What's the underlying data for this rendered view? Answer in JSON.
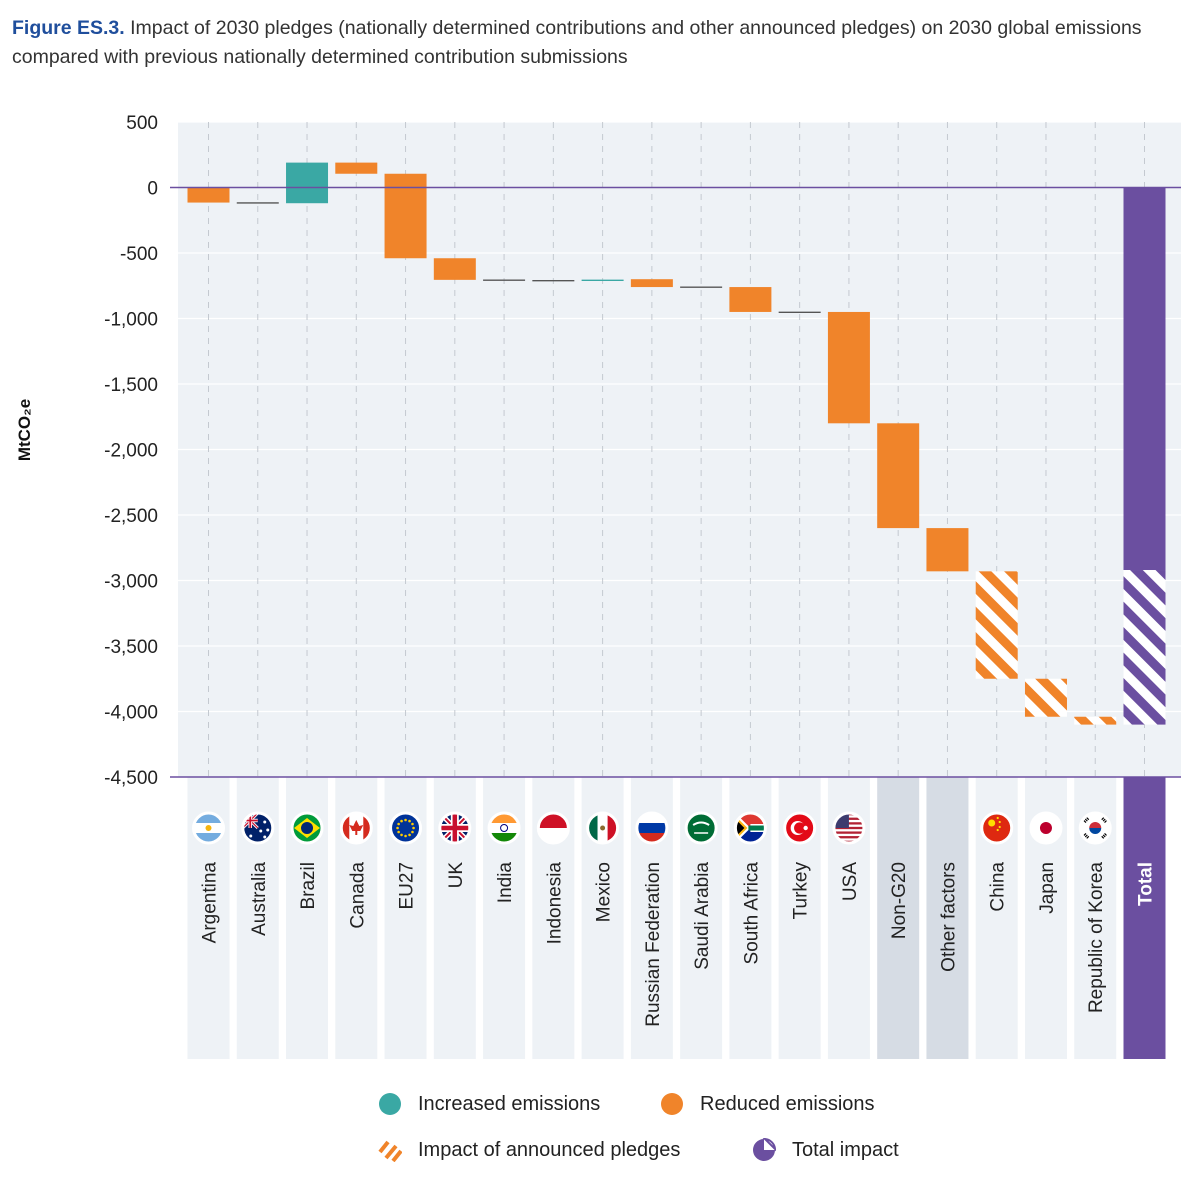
{
  "caption": {
    "label": "Figure ES.3.",
    "text": " Impact of 2030 pledges (nationally determined contributions and other announced pledges) on 2030 global emissions compared with previous nationally determined contribution submissions"
  },
  "colors": {
    "increased": "#3aa8a4",
    "reduced": "#f0842a",
    "total": "#6b4fa0",
    "plot_bg": "#eef2f6",
    "group_bg": "#d6dce4",
    "axis_line": "#6b4fa0"
  },
  "chart_data": {
    "type": "bar",
    "subtype": "waterfall",
    "ylabel": "MtCO₂e",
    "ylim": [
      -4500,
      500
    ],
    "yticks": [
      500,
      0,
      -500,
      -1000,
      -1500,
      -2000,
      -2500,
      -3000,
      -3500,
      -4000,
      -4500
    ],
    "ytick_labels": [
      "500",
      "0",
      "-500",
      "-1,000",
      "-1,500",
      "-2,000",
      "-2,500",
      "-3,000",
      "-3,500",
      "-4,000",
      "-4,500"
    ],
    "grid": true,
    "categories": [
      "Argentina",
      "Australia",
      "Brazil",
      "Canada",
      "EU27",
      "UK",
      "India",
      "Indonesia",
      "Mexico",
      "Russian Federation",
      "Saudi Arabia",
      "South Africa",
      "Turkey",
      "USA",
      "Non-G20",
      "Other factors",
      "China",
      "Japan",
      "Republic of Korea",
      "Total"
    ],
    "bars": [
      {
        "category": "Argentina",
        "start": 0,
        "end": -115,
        "kind": "reduced"
      },
      {
        "category": "Australia",
        "start": -115,
        "end": -120,
        "kind": "reduced"
      },
      {
        "category": "Brazil",
        "start": -120,
        "end": 190,
        "kind": "increased"
      },
      {
        "category": "Canada",
        "start": 190,
        "end": 105,
        "kind": "reduced"
      },
      {
        "category": "EU27",
        "start": 105,
        "end": -540,
        "kind": "reduced"
      },
      {
        "category": "UK",
        "start": -540,
        "end": -705,
        "kind": "reduced"
      },
      {
        "category": "India",
        "start": -705,
        "end": -710,
        "kind": "reduced"
      },
      {
        "category": "Indonesia",
        "start": -710,
        "end": -712,
        "kind": "reduced"
      },
      {
        "category": "Mexico",
        "start": -712,
        "end": -705,
        "kind": "increased"
      },
      {
        "category": "Russian Federation",
        "start": -700,
        "end": -760,
        "kind": "reduced"
      },
      {
        "category": "Saudi Arabia",
        "start": -760,
        "end": -762,
        "kind": "reduced"
      },
      {
        "category": "South Africa",
        "start": -760,
        "end": -950,
        "kind": "reduced"
      },
      {
        "category": "Turkey",
        "start": -950,
        "end": -955,
        "kind": "reduced"
      },
      {
        "category": "USA",
        "start": -950,
        "end": -1800,
        "kind": "reduced"
      },
      {
        "category": "Non-G20",
        "start": -1800,
        "end": -2600,
        "kind": "reduced"
      },
      {
        "category": "Other factors",
        "start": -2600,
        "end": -2930,
        "kind": "reduced"
      },
      {
        "category": "China",
        "start": -2930,
        "end": -3750,
        "kind": "announced"
      },
      {
        "category": "Japan",
        "start": -3750,
        "end": -4040,
        "kind": "announced"
      },
      {
        "category": "Republic of Korea",
        "start": -4040,
        "end": -4100,
        "kind": "announced"
      },
      {
        "category": "Total",
        "start": 0,
        "end": -2920,
        "kind": "total"
      },
      {
        "category": "Total",
        "start": -2920,
        "end": -4100,
        "kind": "total-announced"
      }
    ],
    "bold_categories": [
      "Total"
    ],
    "grey_categories": [
      "Non-G20",
      "Other factors"
    ],
    "flag_icons": [
      "argentina-flag-icon",
      "australia-flag-icon",
      "brazil-flag-icon",
      "canada-flag-icon",
      "eu-flag-icon",
      "uk-flag-icon",
      "india-flag-icon",
      "indonesia-flag-icon",
      "mexico-flag-icon",
      "russia-flag-icon",
      "saudi-arabia-flag-icon",
      "south-africa-flag-icon",
      "turkey-flag-icon",
      "usa-flag-icon",
      "",
      "",
      "china-flag-icon",
      "japan-flag-icon",
      "korea-flag-icon",
      ""
    ],
    "legend": [
      {
        "label": "Increased emissions",
        "kind": "increased"
      },
      {
        "label": "Reduced emissions",
        "kind": "reduced"
      },
      {
        "label": "Impact of announced pledges",
        "kind": "announced"
      },
      {
        "label": "Total impact",
        "kind": "total"
      }
    ],
    "legend_placement": "bottom"
  }
}
